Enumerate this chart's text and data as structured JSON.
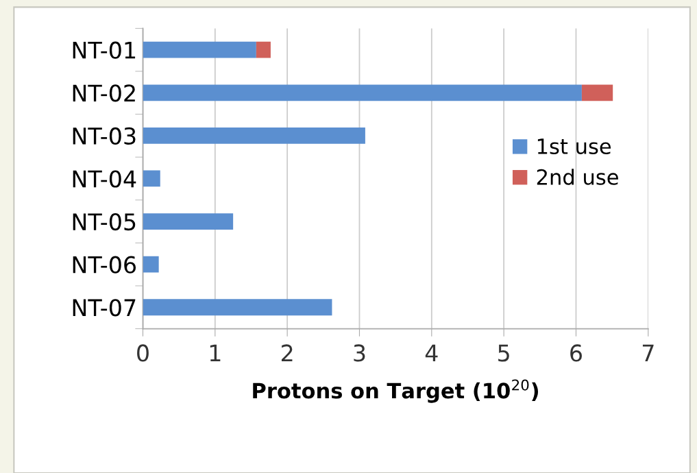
{
  "chart_data": {
    "type": "bar",
    "orientation": "horizontal",
    "stacked": true,
    "xlabel": "Protons on Target (10$^{20}$)",
    "categories": [
      "NT-01",
      "NT-02",
      "NT-03",
      "NT-04",
      "NT-05",
      "NT-06",
      "NT-07"
    ],
    "series": [
      {
        "name": "1st use",
        "color": "#5b8fd0",
        "values": [
          1.57,
          6.08,
          3.08,
          0.24,
          1.25,
          0.22,
          2.62
        ]
      },
      {
        "name": "2nd use",
        "color": "#d0605a",
        "values": [
          0.2,
          0.43,
          0,
          0,
          0,
          0,
          0
        ]
      }
    ],
    "xlim": [
      0,
      7
    ],
    "xticks": [
      0,
      1,
      2,
      3,
      4,
      5,
      6,
      7
    ],
    "grid": "x",
    "legend": "right"
  }
}
